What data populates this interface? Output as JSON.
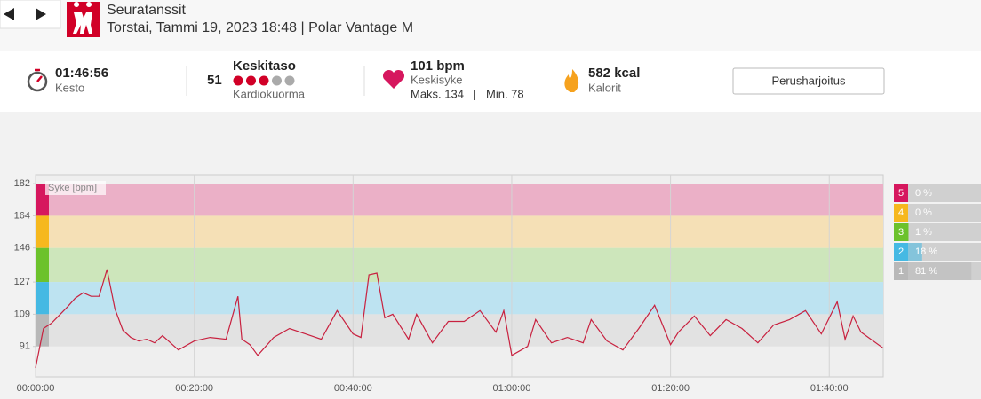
{
  "header": {
    "title": "Seuratanssit",
    "subtitle": "Torstai, Tammi 19, 2023 18:48 | Polar Vantage M"
  },
  "summary": {
    "duration": "01:46:56",
    "duration_label": "Kesto",
    "load_value": "51",
    "load_title": "Keskitaso",
    "load_label": "Kardiokuorma",
    "load_dots": {
      "filled": 3,
      "total": 5
    },
    "avg_hr": "101 bpm",
    "avg_hr_label": "Keskisyke",
    "max_hr": "Maks. 134",
    "min_hr": "Min. 78",
    "calories": "582 kcal",
    "calories_label": "Kalorit",
    "button": "Perusharjoitus"
  },
  "chart_data": {
    "type": "line",
    "y_label": "Syke [bpm]",
    "color": "#c8213f",
    "x": [
      0,
      1,
      2,
      4,
      5,
      6,
      7,
      8,
      9,
      10,
      11,
      12,
      13,
      14,
      15,
      16,
      18,
      20,
      22,
      24,
      25.5,
      26,
      27,
      28,
      30,
      32,
      34,
      36,
      38,
      40,
      41,
      42,
      43,
      44,
      45,
      47,
      48,
      50,
      52,
      54,
      56,
      58,
      59,
      60,
      62,
      63,
      65,
      67,
      69,
      70,
      72,
      74,
      76,
      78,
      80,
      81,
      83,
      85,
      87,
      89,
      91,
      93,
      95,
      97,
      99,
      101,
      102,
      103,
      104,
      106.8
    ],
    "values": [
      79,
      101,
      104,
      113,
      118,
      121,
      119,
      119,
      134,
      112,
      100,
      96,
      94,
      95,
      93,
      97,
      89,
      94,
      96,
      95,
      119,
      95,
      92,
      86,
      96,
      101,
      98,
      95,
      111,
      98,
      96,
      131,
      132,
      107,
      109,
      95,
      109,
      93,
      105,
      105,
      111,
      99,
      111,
      86,
      91,
      106,
      93,
      96,
      93,
      106,
      94,
      89,
      101,
      114,
      92,
      99,
      108,
      97,
      106,
      101,
      93,
      103,
      106,
      111,
      98,
      116,
      95,
      108,
      99,
      90
    ],
    "xlim": [
      0,
      106.8
    ],
    "ylim": [
      74,
      187
    ],
    "xticks": [
      {
        "value": 0,
        "label": "00:00:00"
      },
      {
        "value": 20,
        "label": "00:20:00"
      },
      {
        "value": 40,
        "label": "00:40:00"
      },
      {
        "value": 60,
        "label": "01:00:00"
      },
      {
        "value": 80,
        "label": "01:20:00"
      },
      {
        "value": 100,
        "label": "01:40:00"
      }
    ],
    "yticks": [
      91,
      109,
      127,
      146,
      164,
      182
    ],
    "grid": true,
    "zones": [
      {
        "zone": 5,
        "from": 164,
        "to": 182,
        "value": 0,
        "value_label": "0 %",
        "color": "#d6175e",
        "band_color": "#ebb0c7"
      },
      {
        "zone": 4,
        "from": 146,
        "to": 164,
        "value": 0,
        "value_label": "0 %",
        "color": "#f6b81e",
        "band_color": "#f5e0b6"
      },
      {
        "zone": 3,
        "from": 127,
        "to": 146,
        "value": 1,
        "value_label": "1 %",
        "color": "#6cc22c",
        "band_color": "#cde6bb"
      },
      {
        "zone": 2,
        "from": 109,
        "to": 127,
        "value": 18,
        "value_label": "18 %",
        "color": "#45b9e3",
        "band_color": "#bde3f1"
      },
      {
        "zone": 1,
        "from": 91,
        "to": 109,
        "value": 81,
        "value_label": "81 %",
        "color": "#b8b8b8",
        "band_color": "#e2e2e2"
      }
    ]
  }
}
